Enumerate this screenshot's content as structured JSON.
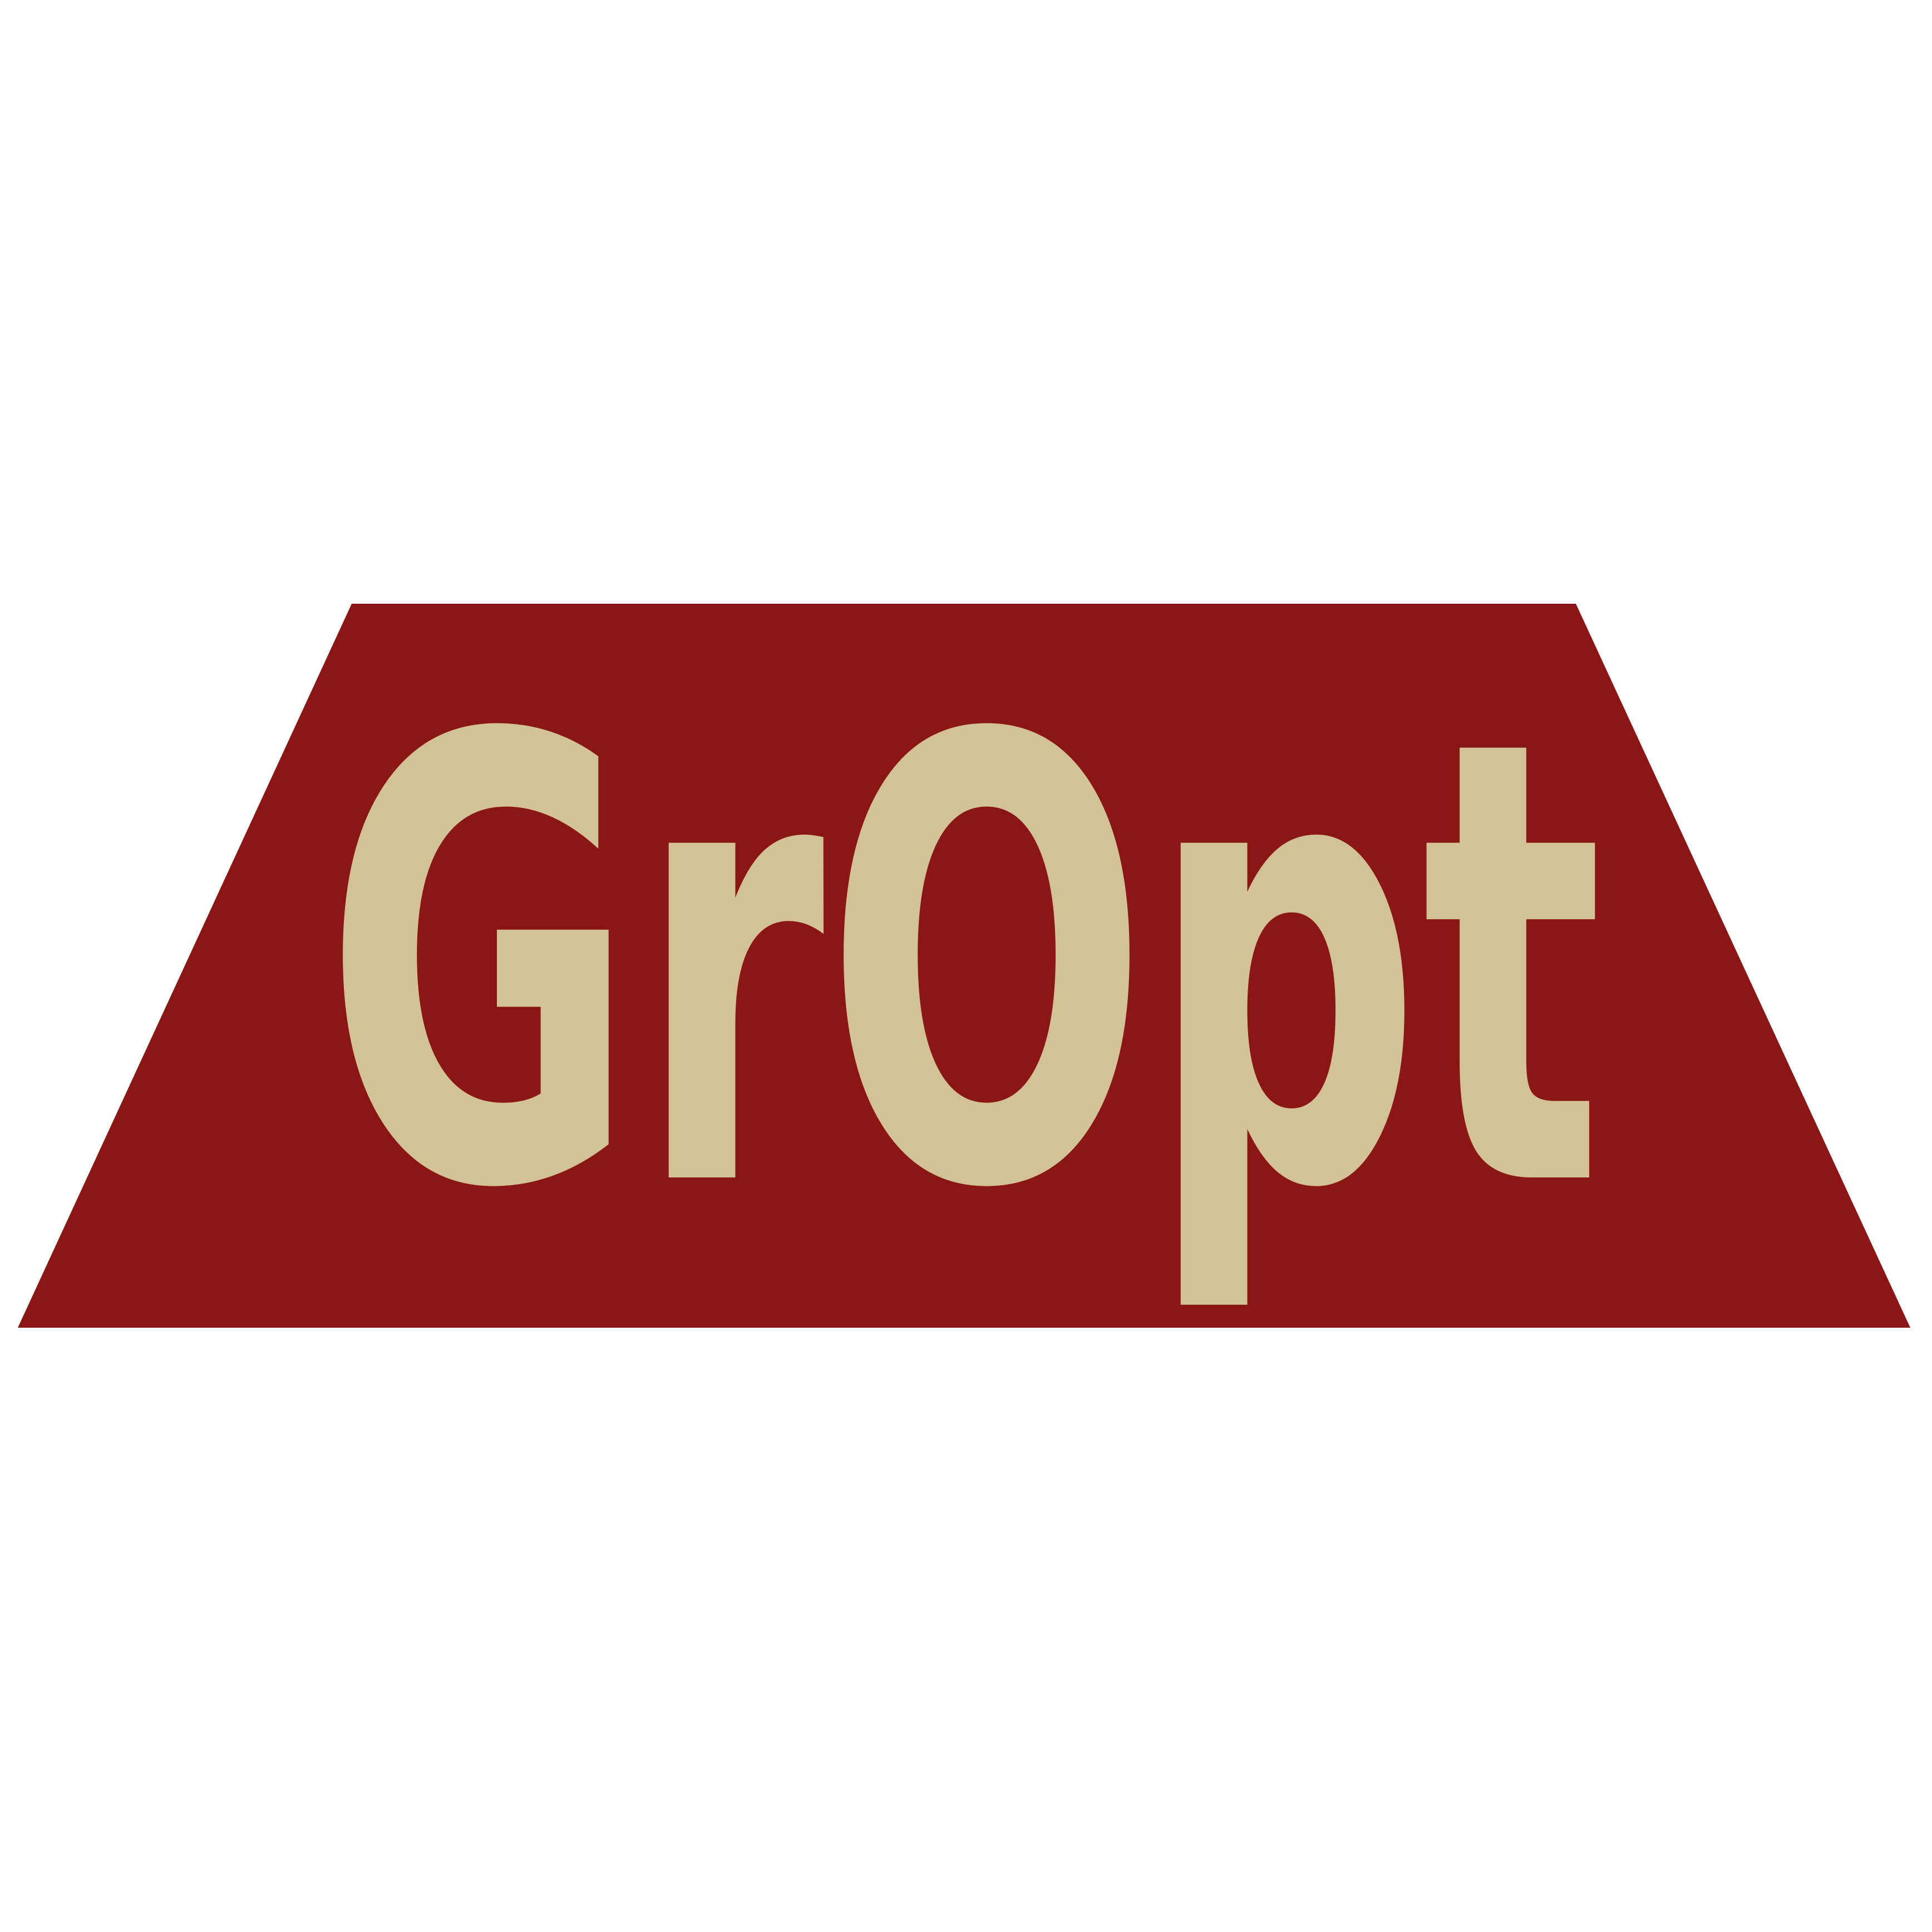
{
  "logo": {
    "text": "GrOpt",
    "background_color": "#ffffff",
    "shape_color": "#8b1616",
    "text_color": "#d3c295"
  }
}
